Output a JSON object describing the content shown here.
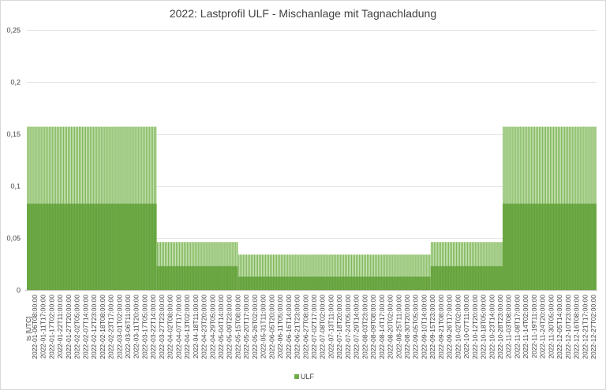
{
  "chart_data": {
    "type": "bar",
    "title": "2022: Lastprofil ULF - Mischanlage mit Tagnachladung",
    "xlabel": "ts [UTC]",
    "ylabel": "",
    "ylim": [
      0,
      0.25
    ],
    "yticks": [
      "0",
      "0,05",
      "0,1",
      "0,15",
      "0,2",
      "0,25"
    ],
    "grid": true,
    "legend_position": "bottom",
    "series": [
      {
        "name": "ULF",
        "color": "#70ad47",
        "profile": {
          "pattern": "daily",
          "segments": [
            {
              "from": "2022-01-01",
              "to": "2022-03-25",
              "low": 0.083,
              "high": 0.157
            },
            {
              "from": "2022-03-25",
              "to": "2022-05-16",
              "low": 0.023,
              "high": 0.046
            },
            {
              "from": "2022-05-16",
              "to": "2022-09-16",
              "low": 0.013,
              "high": 0.034
            },
            {
              "from": "2022-09-16",
              "to": "2022-11-01",
              "low": 0.023,
              "high": 0.046
            },
            {
              "from": "2022-11-01",
              "to": "2022-12-31",
              "low": 0.083,
              "high": 0.157
            }
          ]
        }
      }
    ],
    "x_tick_labels": [
      "2022-01-06T08:00:00",
      "2022-01-11T17:00:00",
      "2022-01-17T02:00:00",
      "2022-01-22T11:00:00",
      "2022-01-27T20:00:00",
      "2022-02-02T05:00:00",
      "2022-02-07T14:00:00",
      "2022-02-12T23:00:00",
      "2022-02-18T08:00:00",
      "2022-02-23T17:00:00",
      "2022-03-01T02:00:00",
      "2022-03-06T11:00:00",
      "2022-03-11T20:00:00",
      "2022-03-17T05:00:00",
      "2022-03-22T14:00:00",
      "2022-03-27T23:00:00",
      "2022-04-02T08:00:00",
      "2022-04-07T17:00:00",
      "2022-04-13T02:00:00",
      "2022-04-18T11:00:00",
      "2022-04-23T20:00:00",
      "2022-04-29T05:00:00",
      "2022-05-04T14:00:00",
      "2022-05-09T23:00:00",
      "2022-05-15T08:00:00",
      "2022-05-20T17:00:00",
      "2022-05-26T02:00:00",
      "2022-05-31T11:00:00",
      "2022-06-05T20:00:00",
      "2022-06-11T05:00:00",
      "2022-06-16T14:00:00",
      "2022-06-21T23:00:00",
      "2022-06-27T08:00:00",
      "2022-07-02T17:00:00",
      "2022-07-08T02:00:00",
      "2022-07-13T11:00:00",
      "2022-07-18T20:00:00",
      "2022-07-24T05:00:00",
      "2022-07-29T14:00:00",
      "2022-08-03T23:00:00",
      "2022-08-09T08:00:00",
      "2022-08-14T17:00:00",
      "2022-08-20T02:00:00",
      "2022-08-25T11:00:00",
      "2022-08-30T20:00:00",
      "2022-09-05T05:00:00",
      "2022-09-10T14:00:00",
      "2022-09-15T23:00:00",
      "2022-09-21T08:00:00",
      "2022-09-26T17:00:00",
      "2022-10-02T02:00:00",
      "2022-10-07T11:00:00",
      "2022-10-12T20:00:00",
      "2022-10-18T05:00:00",
      "2022-10-23T14:00:00",
      "2022-10-28T23:00:00",
      "2022-11-03T08:00:00",
      "2022-11-08T17:00:00",
      "2022-11-14T02:00:00",
      "2022-11-19T11:00:00",
      "2022-11-24T20:00:00",
      "2022-11-30T05:00:00",
      "2022-12-05T14:00:00",
      "2022-12-10T23:00:00",
      "2022-12-16T08:00:00",
      "2022-12-21T17:00:00",
      "2022-12-27T02:00:00"
    ]
  }
}
